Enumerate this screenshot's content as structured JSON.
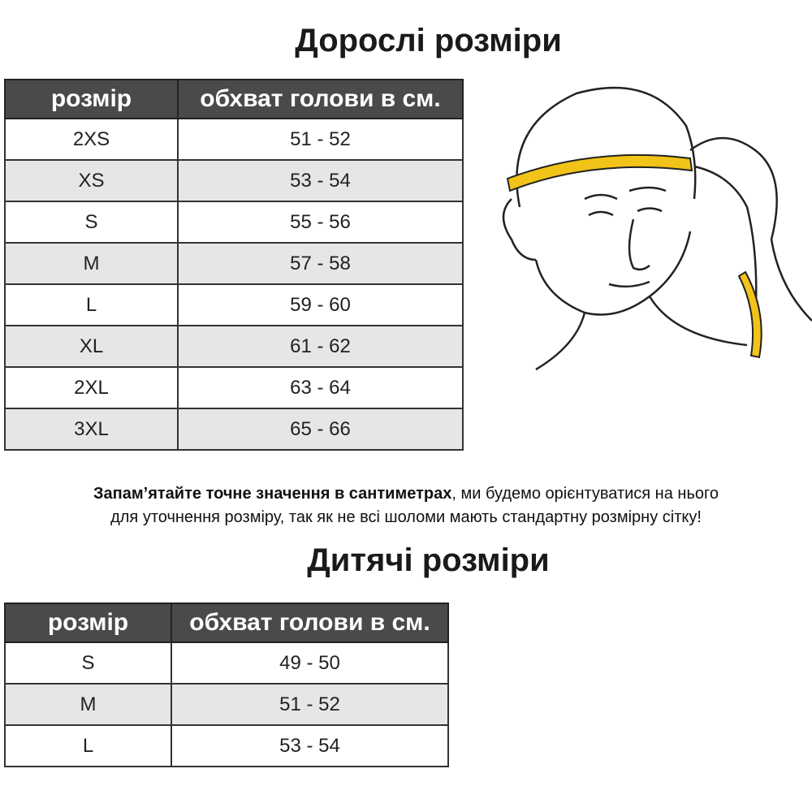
{
  "adult": {
    "title": "Дорослі розміри",
    "headers": [
      "розмір",
      "обхват голови в см."
    ],
    "rows": [
      [
        "2XS",
        "51 - 52"
      ],
      [
        "XS",
        "53 - 54"
      ],
      [
        "S",
        "55 - 56"
      ],
      [
        "M",
        "57 - 58"
      ],
      [
        "L",
        "59 - 60"
      ],
      [
        "XL",
        "61 - 62"
      ],
      [
        "2XL",
        "63 - 64"
      ],
      [
        "3XL",
        "65 - 66"
      ]
    ]
  },
  "note": {
    "bold": "Запам’ятайте точне значення в сантиметрах",
    "rest": ", ми будемо орієнтуватися на нього",
    "line2": "для уточнення розміру, так як не всі шоломи мають стандартну розмірну сітку!"
  },
  "kids": {
    "title": "Дитячі розміри",
    "headers": [
      "розмір",
      "обхват голови в см."
    ],
    "rows": [
      [
        "S",
        "49 - 50"
      ],
      [
        "M",
        "51 - 52"
      ],
      [
        "L",
        "53 - 54"
      ]
    ]
  },
  "colors": {
    "header_bg": "#4a4a4a",
    "alt_row": "#e6e6e6",
    "tape": "#f2c318"
  }
}
